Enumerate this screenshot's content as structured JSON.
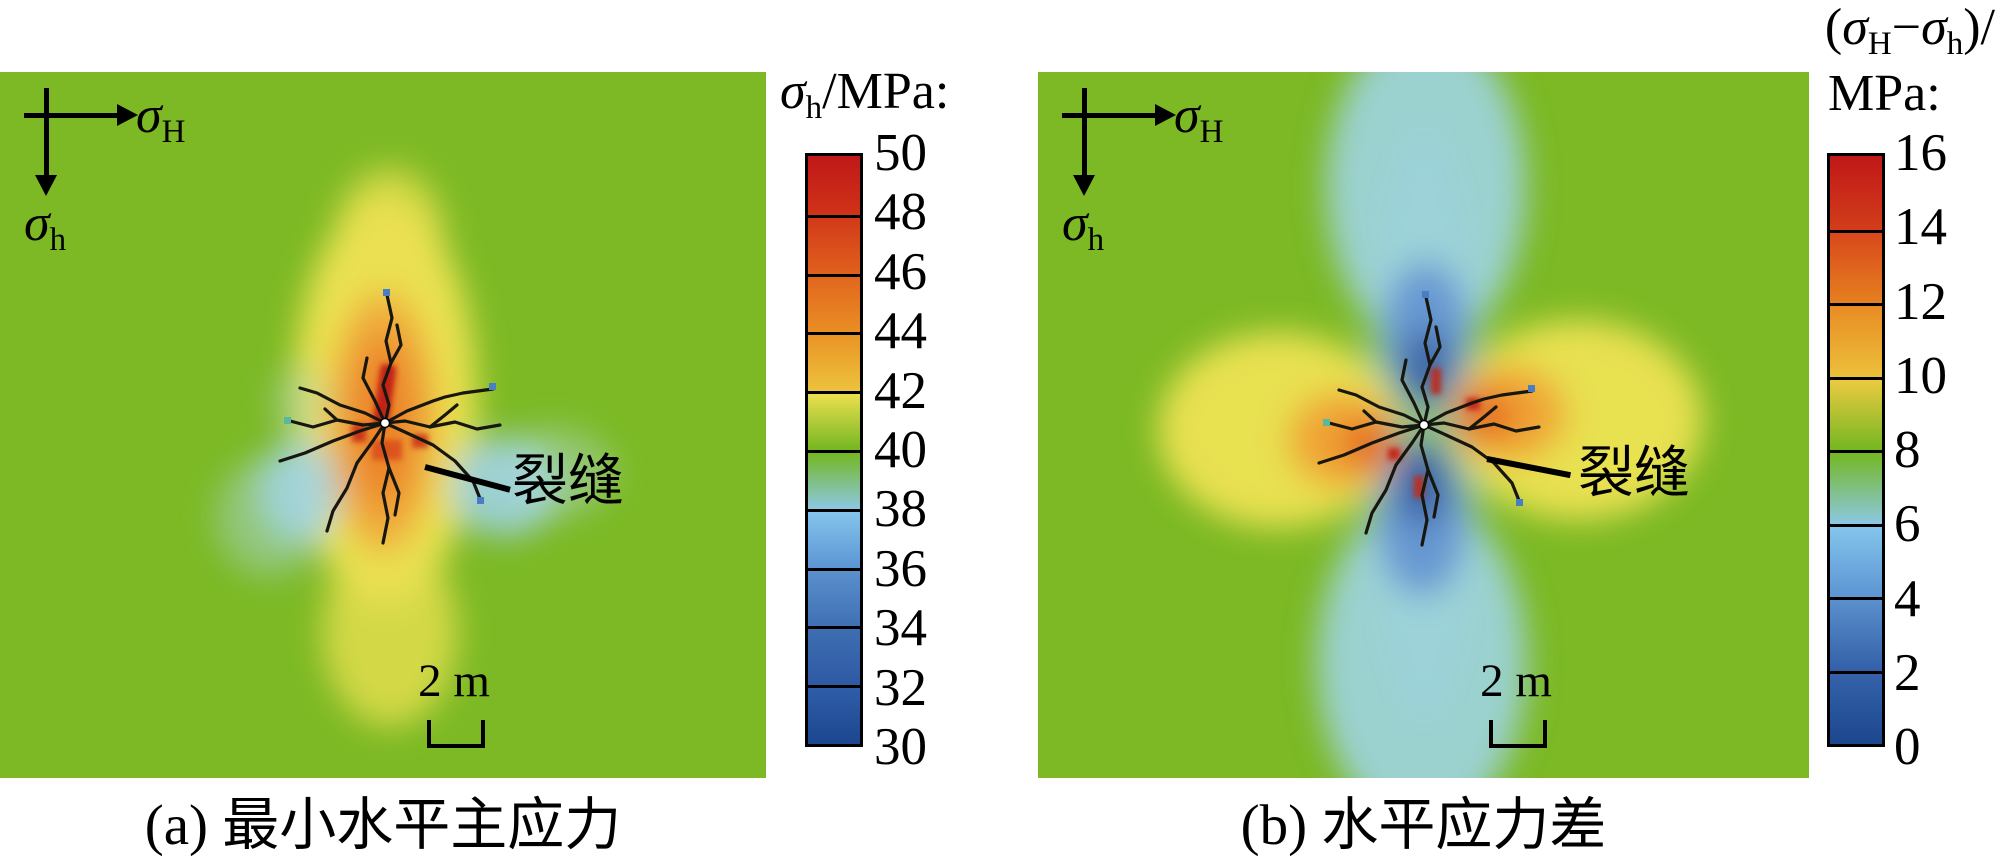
{
  "panels": [
    {
      "caption": "(a) 最小水平主应力",
      "fracture_label": "裂缝",
      "scale_bar_label": "2 m",
      "axis_h": [
        "σ",
        "H"
      ],
      "axis_v": [
        "σ",
        "h"
      ],
      "colorbar": {
        "title": [
          "σ",
          "h",
          "/MPa:"
        ],
        "ticks": [
          "50",
          "48",
          "46",
          "44",
          "42",
          "40",
          "38",
          "36",
          "34",
          "32",
          "30"
        ],
        "cells": [
          [
            "#c01818",
            "#cf3318"
          ],
          [
            "#d23a1a",
            "#e0601d"
          ],
          [
            "#e2661e",
            "#e98e24"
          ],
          [
            "#ea9426",
            "#ecc23c"
          ],
          [
            "#ecdf4f",
            "#74b722"
          ],
          [
            "#74b722",
            "#8cc8e2"
          ],
          [
            "#85c4ec",
            "#5b95d4"
          ],
          [
            "#5a90cc",
            "#3f70b4"
          ],
          [
            "#3e6eb2",
            "#2e5aa4"
          ],
          [
            "#2f5da8",
            "#1c478f"
          ]
        ]
      }
    },
    {
      "caption": "(b) 水平应力差",
      "fracture_label": "裂缝",
      "scale_bar_label": "2 m",
      "axis_h": [
        "σ",
        "H"
      ],
      "axis_v": [
        "σ",
        "h"
      ],
      "colorbar": {
        "title_line1": [
          "(",
          "σ",
          "H",
          "−",
          "σ",
          "h",
          ")/"
        ],
        "title_line2": "MPa:",
        "ticks": [
          "16",
          "14",
          "12",
          "10",
          "8",
          "6",
          "4",
          "2",
          "0"
        ],
        "cells": [
          [
            "#c01818",
            "#d23d1a"
          ],
          [
            "#d8481c",
            "#e6801f"
          ],
          [
            "#e88c24",
            "#ecc03a"
          ],
          [
            "#ecca40",
            "#74b722"
          ],
          [
            "#74b722",
            "#8cc8e2"
          ],
          [
            "#85c4ec",
            "#5b95d4"
          ],
          [
            "#5a90cc",
            "#335fa8"
          ],
          [
            "#3562aa",
            "#1c478f"
          ]
        ]
      }
    }
  ],
  "colors": {
    "background_field": "#7cb924",
    "fracture_line": "#17170f",
    "page_background": "#ffffff"
  },
  "chart_data": [
    {
      "type": "heatmap",
      "title": "(a) 最小水平主应力",
      "colorbar_title": "σh/MPa",
      "colorbar_ticks": [
        50,
        48,
        46,
        44,
        42,
        40,
        38,
        36,
        34,
        32,
        30
      ],
      "value_range": [
        30,
        50
      ],
      "far_field_value_MPa": 40,
      "scale_bar": "2 m",
      "annotations": [
        "裂缝"
      ],
      "axes_arrows": [
        "σH points right",
        "σh points down"
      ],
      "pattern": "Elongated vertical high-stress lobe (42–50 MPa, yellow/orange/red) along the fracture network; low-stress lobes (34–38 MPa, light blue) on the left and right flanks; uniform background ≈40 MPa (green); black branched hydraulic fracture network radiating from a central wellbore"
    },
    {
      "type": "heatmap",
      "title": "(b) 水平应力差",
      "colorbar_title": "(σH−σh)/MPa",
      "colorbar_ticks": [
        16,
        14,
        12,
        10,
        8,
        6,
        4,
        2,
        0
      ],
      "value_range": [
        0,
        16
      ],
      "far_field_value_MPa": 8,
      "scale_bar": "2 m",
      "annotations": [
        "裂缝"
      ],
      "axes_arrows": [
        "σH points right",
        "σh points down"
      ],
      "pattern": "Low stress-difference lobes (0–6 MPa, blue/dark blue) directly above and below the fracture extending as light-blue columns to panel edges; high stress-difference lobes (10–16 MPa, yellow/orange/red) on the left and right of the fracture; background ≈8 MPa (green)"
    }
  ]
}
